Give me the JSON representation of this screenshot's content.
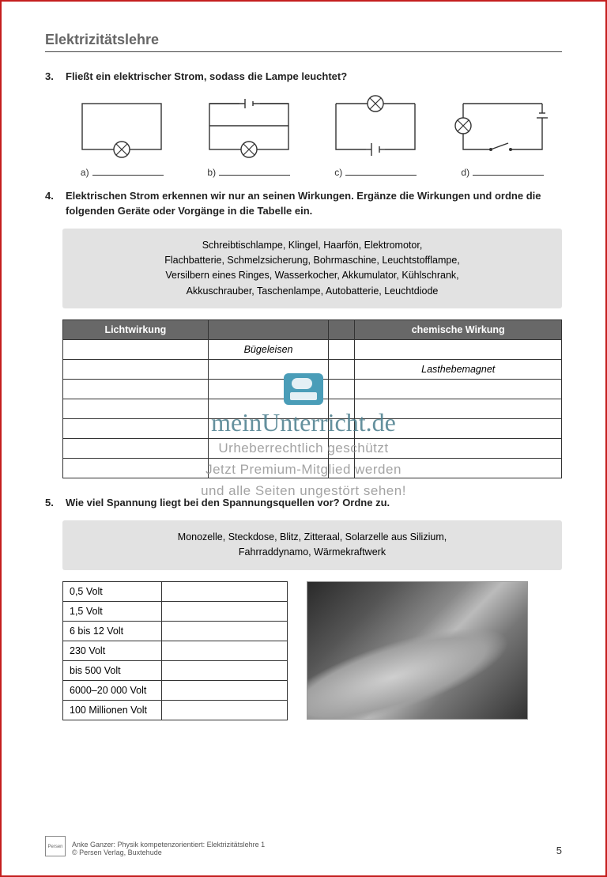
{
  "header": {
    "title": "Elektrizitätslehre"
  },
  "q3": {
    "num": "3.",
    "text": "Fließt ein elektrischer Strom, sodass die Lampe leuchtet?",
    "labels": [
      "a)",
      "b)",
      "c)",
      "d)"
    ],
    "circuit_stroke": "#333333",
    "circuit_fill": "#ffffff"
  },
  "q4": {
    "num": "4.",
    "text": "Elektrischen Strom erkennen wir nur an seinen Wirkungen. Ergänze die Wirkungen und ordne die folgenden Geräte oder Vorgänge in die Tabelle ein.",
    "word_bank": "Schreibtischlampe, Klingel, Haarfön, Elektromotor,\nFlachbatterie, Schmelzsicherung, Bohrmaschine, Leuchtstofflampe,\nVersilbern eines Ringes, Wasserkocher, Akkumulator, Kühlschrank,\nAkkuschrauber, Taschenlampe, Autobatterie, Leuchtdiode",
    "table": {
      "headers": [
        "Lichtwirkung",
        "",
        "",
        "chemische Wirkung"
      ],
      "rows": [
        [
          "",
          "Bügeleisen",
          "",
          ""
        ],
        [
          "",
          "",
          "",
          "Lasthebemagnet"
        ],
        [
          "",
          "",
          "",
          ""
        ],
        [
          "",
          "",
          "",
          ""
        ],
        [
          "",
          "",
          "",
          ""
        ],
        [
          "",
          "",
          "",
          ""
        ],
        [
          "",
          "",
          "",
          ""
        ]
      ],
      "header_bg": "#686868",
      "header_color": "#ffffff",
      "border_color": "#333333"
    }
  },
  "q5": {
    "num": "5.",
    "text": "Wie viel Spannung liegt bei den Spannungsquellen vor? Ordne zu.",
    "word_bank": "Monozelle, Steckdose, Blitz, Zitteraal, Solarzelle aus Silizium,\nFahrraddynamo, Wärmekraftwerk",
    "voltage_rows": [
      "0,5 Volt",
      "1,5 Volt",
      "6 bis 12 Volt",
      "230 Volt",
      "bis 500 Volt",
      "6000–20 000 Volt",
      "100 Millionen Volt"
    ]
  },
  "watermark": {
    "brand": "meinUnterricht.de",
    "line1": "Urheberrechtlich geschützt",
    "line2": "Jetzt Premium-Mitglied werden",
    "line3": "und alle Seiten ungestört sehen!",
    "brand_color": "#4a7d8c",
    "text_color": "#9a9a9a"
  },
  "footer": {
    "publisher_logo": "Persen",
    "author_line": "Anke Ganzer: Physik kompetenzorientiert: Elektrizitätslehre 1",
    "copyright_line": "© Persen Verlag, Buxtehude",
    "page_number": "5"
  },
  "colors": {
    "page_border": "#c41e1e",
    "text": "#222222",
    "muted": "#666666",
    "wordbank_bg": "#e2e2e2"
  }
}
